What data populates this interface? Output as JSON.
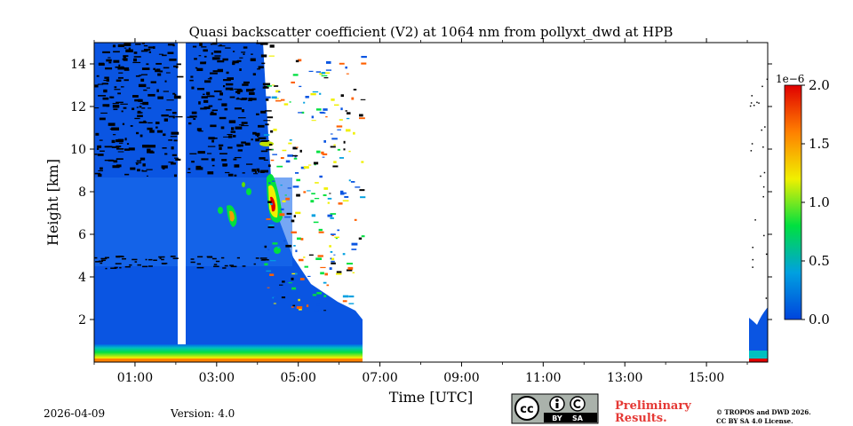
{
  "chart_data": {
    "type": "heatmap",
    "title": "Quasi backscatter coefficient (V2) at 1064 nm from pollyxt_dwd at HPB",
    "xlabel": "Time [UTC]",
    "ylabel": "Height [km]",
    "xlim": [
      0,
      16.5
    ],
    "ylim": [
      0,
      15
    ],
    "xticks": [
      1,
      3,
      5,
      7,
      9,
      11,
      13,
      15
    ],
    "xtick_labels": [
      "01:00",
      "03:00",
      "05:00",
      "07:00",
      "09:00",
      "11:00",
      "13:00",
      "15:00"
    ],
    "yticks": [
      2,
      4,
      6,
      8,
      10,
      12,
      14
    ],
    "ytick_labels": [
      "2",
      "4",
      "6",
      "8",
      "10",
      "12",
      "14"
    ],
    "colorbar": {
      "min": 0.0,
      "max": 2.0,
      "scale_label": "1e−6",
      "ticks": [
        0.0,
        0.5,
        1.0,
        1.5,
        2.0
      ],
      "tick_labels": [
        "0.0",
        "0.5",
        "1.0",
        "1.5",
        "2.0"
      ],
      "colormap": [
        "#0044dd",
        "#00a0e0",
        "#00e040",
        "#f0f000",
        "#ff8000",
        "#e00000"
      ]
    },
    "data_gaps": [
      [
        2.05,
        2.2
      ],
      [
        6.6,
        16.0
      ]
    ],
    "features": [
      {
        "name": "boundary layer",
        "time": [
          0,
          6.6
        ],
        "height": [
          0,
          0.6
        ],
        "value": 1.4
      },
      {
        "name": "aerosol layer",
        "time": [
          4.3,
          4.6
        ],
        "height": [
          6.5,
          8.8
        ],
        "value": 2.0
      },
      {
        "name": "aerosol layer",
        "time": [
          3.2,
          3.5
        ],
        "height": [
          6.3,
          7.2
        ],
        "value": 1.8
      }
    ]
  },
  "footer": {
    "date": "2026-04-09",
    "version": "Version: 4.0",
    "preliminary_line1": "Preliminary",
    "preliminary_line2": "Results.",
    "copyright_line1": "© TROPOS and DWD 2026.",
    "copyright_line2": "CC BY SA 4.0 License.",
    "cc_logo": {
      "by": "BY",
      "sa": "SA",
      "cc": "cc"
    }
  }
}
